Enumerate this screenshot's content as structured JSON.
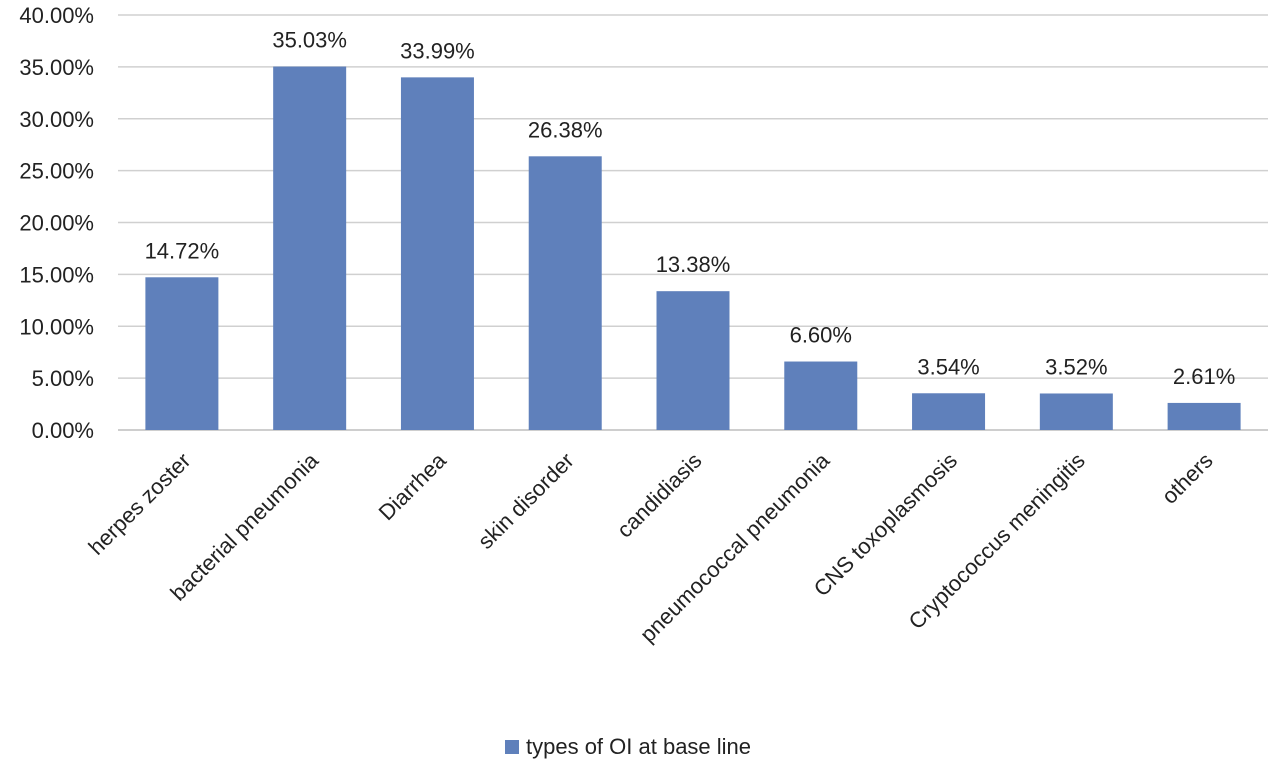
{
  "chart_data": {
    "type": "bar",
    "title": "",
    "xlabel": "",
    "ylabel": "",
    "categories": [
      "herpes zoster",
      "bacterial pneumonia",
      "Diarrhea",
      "skin disorder",
      "candidiasis",
      "pneumococcal pneumonia",
      "CNS toxoplasmosis",
      "Cryptococcus meningitis",
      "others"
    ],
    "series": [
      {
        "name": "types of OI at base line",
        "color": "#5f80bb",
        "values": [
          14.72,
          35.03,
          33.99,
          26.38,
          13.38,
          6.6,
          3.54,
          3.52,
          2.61
        ],
        "data_labels": [
          "14.72%",
          "35.03%",
          "33.99%",
          "26.38%",
          "13.38%",
          "6.60%",
          "3.54%",
          "3.52%",
          "2.61%"
        ]
      }
    ],
    "ylim": [
      0,
      40
    ],
    "yticks": [
      0,
      5,
      10,
      15,
      20,
      25,
      30,
      35,
      40
    ],
    "ytick_labels": [
      "0.00%",
      "5.00%",
      "10.00%",
      "15.00%",
      "20.00%",
      "25.00%",
      "30.00%",
      "35.00%",
      "40.00%"
    ],
    "grid": true,
    "legend_position": "bottom"
  }
}
